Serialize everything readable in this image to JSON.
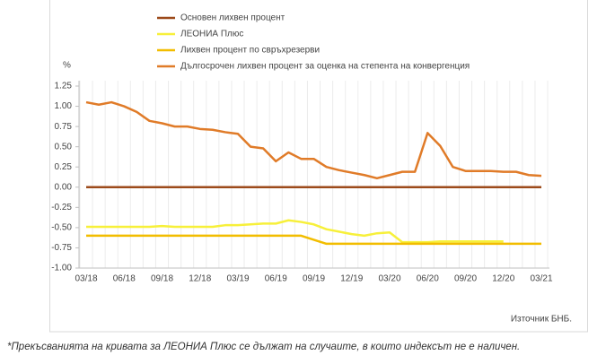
{
  "chart_data": {
    "type": "line",
    "y_unit": "%",
    "source": "Източник БНБ.",
    "footnote": "*Прекъсванията на кривата за ЛЕОНИА Плюс се дължат на случаите, в които индексът не е наличен.",
    "categories": [
      "03/18",
      null,
      null,
      "06/18",
      null,
      null,
      "09/18",
      null,
      null,
      "12/18",
      null,
      null,
      "03/19",
      null,
      null,
      "06/19",
      null,
      null,
      "09/19",
      null,
      null,
      "12/19",
      null,
      null,
      "03/20",
      null,
      null,
      "06/20",
      null,
      null,
      "09/20",
      null,
      null,
      "12/20",
      null,
      null,
      "03/21"
    ],
    "ylim": [
      -1,
      1.25
    ],
    "yticks": [
      1.25,
      {
        "value": 1,
        "label": "1.00"
      },
      0.75,
      {
        "value": 0.5,
        "label": "0.50"
      },
      0.25,
      {
        "value": 0,
        "label": "0.00"
      },
      -0.25,
      {
        "value": -0.5,
        "label": "-0.50"
      },
      -0.75,
      {
        "value": -1,
        "label": "-1.00"
      }
    ],
    "series": [
      {
        "name": "Основен лихвен процент",
        "color": "#9c4a1a",
        "values": [
          0,
          0,
          0,
          0,
          0,
          0,
          0,
          0,
          0,
          0,
          0,
          0,
          0,
          0,
          0,
          0,
          0,
          0,
          0,
          0,
          0,
          0,
          0,
          0,
          0,
          0,
          0,
          0,
          0,
          0,
          0,
          0,
          0,
          0,
          0,
          0,
          0
        ]
      },
      {
        "name": "ЛЕОНИА Плюс",
        "color": "#f7f03a",
        "values": [
          -0.49,
          -0.49,
          -0.49,
          -0.49,
          -0.49,
          -0.49,
          -0.48,
          -0.49,
          -0.49,
          -0.49,
          -0.49,
          -0.47,
          -0.47,
          -0.46,
          -0.45,
          -0.45,
          -0.41,
          -0.43,
          -0.46,
          -0.52,
          -0.55,
          -0.58,
          -0.6,
          -0.57,
          -0.56,
          -0.68,
          -0.68,
          -0.68,
          -0.67,
          -0.67,
          -0.67,
          -0.67,
          -0.67,
          -0.67,
          null,
          null,
          null
        ]
      },
      {
        "name": "Лихвен процент по свръхрезерви",
        "color": "#f2bd00",
        "values": [
          -0.6,
          -0.6,
          -0.6,
          -0.6,
          -0.6,
          -0.6,
          -0.6,
          -0.6,
          -0.6,
          -0.6,
          -0.6,
          -0.6,
          -0.6,
          -0.6,
          -0.6,
          -0.6,
          -0.6,
          -0.6,
          -0.65,
          -0.7,
          -0.7,
          -0.7,
          -0.7,
          -0.7,
          -0.7,
          -0.7,
          -0.7,
          -0.7,
          -0.7,
          -0.7,
          -0.7,
          -0.7,
          -0.7,
          -0.7,
          -0.7,
          -0.7,
          -0.7
        ]
      },
      {
        "name": "Дългосрочен лихвен процент за оценка на степента на конвергенция",
        "color": "#e07b28",
        "values": [
          1.05,
          1.02,
          1.05,
          1.0,
          0.93,
          0.82,
          0.79,
          0.75,
          0.75,
          0.72,
          0.71,
          0.68,
          0.66,
          0.5,
          0.48,
          0.32,
          0.43,
          0.35,
          0.35,
          0.25,
          0.21,
          0.18,
          0.15,
          0.11,
          0.15,
          0.19,
          0.19,
          0.67,
          0.51,
          0.25,
          0.2,
          0.2,
          0.2,
          0.19,
          0.19,
          0.15,
          0.14
        ]
      }
    ]
  }
}
